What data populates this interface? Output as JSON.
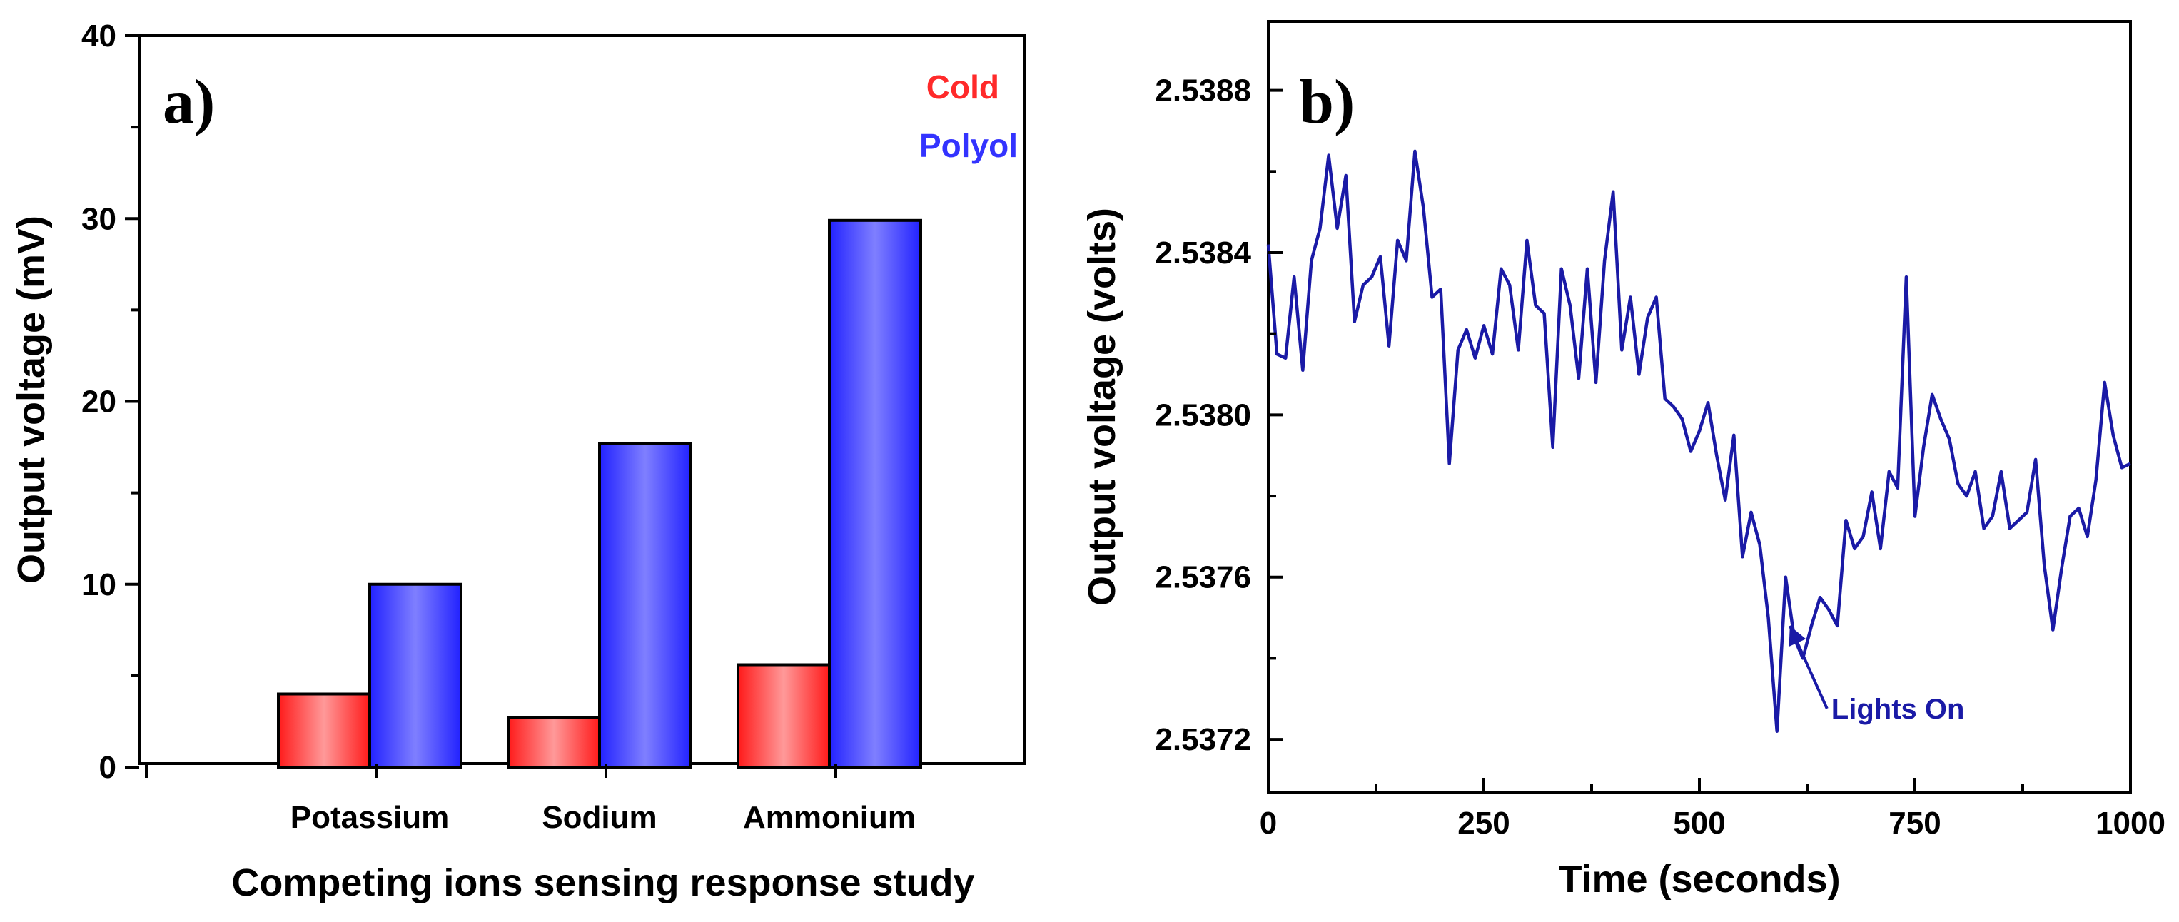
{
  "chart_data": [
    {
      "type": "bar",
      "panel_label": "a)",
      "categories": [
        "Potassium",
        "Sodium",
        "Ammonium"
      ],
      "series": [
        {
          "name": "Cold",
          "color": "#ff2a2a",
          "values": [
            4.0,
            2.7,
            5.6
          ]
        },
        {
          "name": "Polyol",
          "color": "#3333ff",
          "values": [
            10.0,
            17.7,
            29.9
          ]
        }
      ],
      "xlabel": "Competing ions sensing response study",
      "ylabel": "Output voltage (mV)",
      "ylim": [
        0,
        40
      ],
      "yticks": [
        "0",
        "10",
        "20",
        "30",
        "40"
      ],
      "legend": "top-right"
    },
    {
      "type": "line",
      "panel_label": "b)",
      "series": [
        {
          "name": "Output voltage",
          "color": "#1a1aa6",
          "x": [
            0,
            10,
            20,
            30,
            40,
            50,
            60,
            70,
            80,
            90,
            100,
            110,
            120,
            130,
            140,
            150,
            160,
            170,
            180,
            190,
            200,
            210,
            220,
            230,
            240,
            250,
            260,
            270,
            280,
            290,
            300,
            310,
            320,
            330,
            340,
            350,
            360,
            370,
            380,
            390,
            400,
            410,
            420,
            430,
            440,
            450,
            460,
            470,
            480,
            490,
            500,
            510,
            520,
            530,
            540,
            550,
            560,
            570,
            580,
            590,
            600,
            610,
            620,
            630,
            640,
            650,
            660,
            670,
            680,
            690,
            700,
            710,
            720,
            730,
            740,
            750,
            760,
            770,
            780,
            790,
            800,
            810,
            820,
            830,
            840,
            850,
            860,
            870,
            880,
            890,
            900,
            910,
            920,
            930,
            940,
            950,
            960,
            970,
            980,
            990,
            1000
          ],
          "y": [
            2.53842,
            2.53815,
            2.53814,
            2.53834,
            2.53811,
            2.53838,
            2.53846,
            2.53864,
            2.53846,
            2.53859,
            2.53823,
            2.53832,
            2.53834,
            2.53839,
            2.53817,
            2.53843,
            2.53838,
            2.53865,
            2.53851,
            2.53829,
            2.53831,
            2.53788,
            2.53816,
            2.53821,
            2.53814,
            2.53822,
            2.53815,
            2.53836,
            2.53832,
            2.53816,
            2.53843,
            2.53827,
            2.53825,
            2.53792,
            2.53836,
            2.53827,
            2.53809,
            2.53836,
            2.53808,
            2.53838,
            2.53855,
            2.53816,
            2.53829,
            2.5381,
            2.53824,
            2.53829,
            2.53804,
            2.53802,
            2.53799,
            2.53791,
            2.53796,
            2.53803,
            2.5379,
            2.53779,
            2.53795,
            2.53765,
            2.53776,
            2.53768,
            2.5375,
            2.53722,
            2.5376,
            2.53745,
            2.5374,
            2.53748,
            2.53755,
            2.53752,
            2.53748,
            2.53774,
            2.53767,
            2.5377,
            2.53781,
            2.53767,
            2.53786,
            2.53782,
            2.53834,
            2.53775,
            2.53792,
            2.53805,
            2.53799,
            2.53794,
            2.53783,
            2.5378,
            2.53786,
            2.53772,
            2.53775,
            2.53786,
            2.53772,
            2.53774,
            2.53776,
            2.53789,
            2.53763,
            2.53747,
            2.53762,
            2.53775,
            2.53777,
            2.5377,
            2.53784,
            2.53808,
            2.53795,
            2.53787,
            2.53788
          ]
        }
      ],
      "xlabel": "Time (seconds)",
      "ylabel": "Output voltage (volts)",
      "xlim": [
        0,
        1000
      ],
      "ylim": [
        2.53707,
        2.53897
      ],
      "xticks": [
        0,
        250,
        500,
        750,
        1000
      ],
      "yticks": [
        2.5372,
        2.5376,
        2.538,
        2.5384,
        2.5388
      ],
      "annotation": {
        "text": "Lights On",
        "points_to_x": 600,
        "points_to_y": 2.53748
      }
    }
  ]
}
